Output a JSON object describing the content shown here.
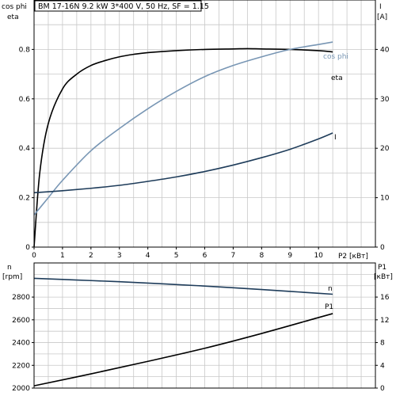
{
  "title": "BM 17-16N   9.2 kW   3*400 V, 50 Hz, SF = 1.15",
  "chart_data": [
    {
      "type": "line",
      "panel": "upper",
      "xlabel": "P2 [кВт]",
      "xlim": [
        0,
        12
      ],
      "xticks": [
        0,
        1,
        2,
        3,
        4,
        5,
        6,
        7,
        8,
        9,
        10
      ],
      "left_axis": {
        "label_top": "cos phi",
        "label_bottom": "eta",
        "ylim": [
          0,
          1
        ],
        "ticks": [
          0,
          0.2,
          0.4,
          0.6,
          0.8
        ]
      },
      "right_axis": {
        "label_top": "I",
        "label_bottom": "[A]",
        "ylim": [
          0,
          50
        ],
        "ticks": [
          0,
          10,
          20,
          30,
          40
        ]
      },
      "grid": true,
      "series": [
        {
          "name": "eta",
          "axis": "left",
          "color": "#000000",
          "x": [
            0,
            0.2,
            0.5,
            1,
            1.5,
            2,
            2.5,
            3,
            3.5,
            4,
            5,
            6,
            7,
            7.5,
            8,
            9,
            10,
            10.5
          ],
          "y": [
            0,
            0.3,
            0.5,
            0.64,
            0.7,
            0.735,
            0.755,
            0.77,
            0.78,
            0.787,
            0.795,
            0.8,
            0.802,
            0.803,
            0.802,
            0.8,
            0.795,
            0.79
          ]
        },
        {
          "name": "cos phi",
          "axis": "left",
          "color": "#7896b4",
          "x": [
            0,
            0.5,
            1,
            2,
            3,
            4,
            5,
            6,
            7,
            8,
            9,
            10,
            10.5
          ],
          "y": [
            0.13,
            0.2,
            0.27,
            0.39,
            0.48,
            0.56,
            0.63,
            0.69,
            0.735,
            0.77,
            0.8,
            0.82,
            0.83
          ]
        },
        {
          "name": "I",
          "axis": "right",
          "color": "#1e3c5a",
          "x": [
            0,
            1,
            2,
            3,
            4,
            5,
            6,
            7,
            8,
            9,
            10,
            10.5
          ],
          "y": [
            11,
            11.4,
            11.9,
            12.5,
            13.3,
            14.2,
            15.3,
            16.6,
            18.1,
            19.8,
            21.9,
            23.1
          ]
        }
      ]
    },
    {
      "type": "line",
      "panel": "lower",
      "xlim": [
        0,
        12
      ],
      "left_axis": {
        "label_top": "n",
        "label_bottom": "[rpm]",
        "ylim": [
          2000,
          3100
        ],
        "ticks": [
          2000,
          2200,
          2400,
          2600,
          2800
        ]
      },
      "right_axis": {
        "label_top": "P1",
        "label_bottom": "[кВт]",
        "ylim": [
          0,
          22
        ],
        "ticks": [
          0,
          4,
          8,
          12,
          16
        ]
      },
      "grid": true,
      "series": [
        {
          "name": "n",
          "axis": "left",
          "color": "#1e3c5a",
          "x": [
            0,
            1,
            2,
            3,
            4,
            5,
            6,
            7,
            8,
            9,
            10,
            10.5
          ],
          "y": [
            2965,
            2955,
            2945,
            2935,
            2923,
            2910,
            2897,
            2882,
            2866,
            2850,
            2833,
            2825
          ]
        },
        {
          "name": "P1",
          "axis": "right",
          "color": "#000000",
          "x": [
            0,
            2,
            4,
            6,
            8,
            10,
            10.5
          ],
          "y": [
            0.4,
            2.5,
            4.7,
            7.0,
            9.6,
            12.4,
            13.1
          ]
        }
      ]
    }
  ]
}
